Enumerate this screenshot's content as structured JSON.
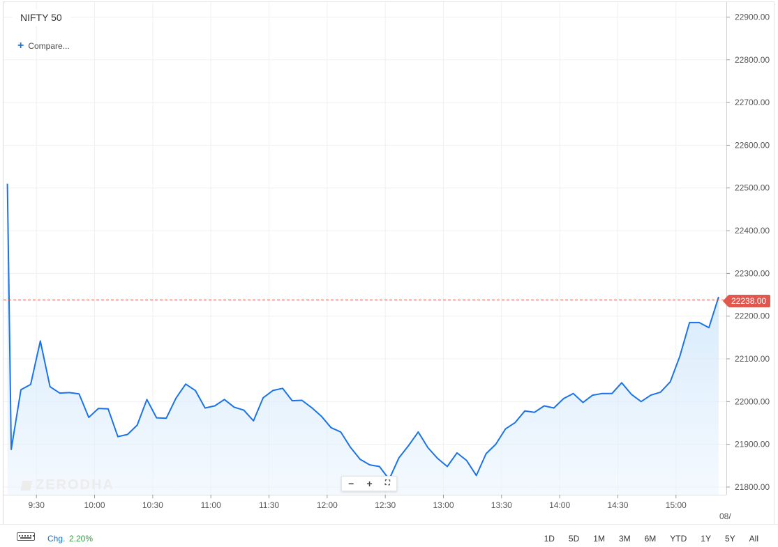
{
  "symbol": "NIFTY 50",
  "compare_label": "Compare...",
  "watermark": "ZERODHA",
  "current_price_label": "22238.00",
  "footer": {
    "change_label": "Chg.",
    "change_value": "2.20%",
    "periods": [
      "1D",
      "5D",
      "1M",
      "3M",
      "6M",
      "YTD",
      "1Y",
      "5Y",
      "All"
    ]
  },
  "colors": {
    "line": "#1a73e8",
    "price_tag": "#e0574e",
    "change_positive": "#2e9e3e"
  },
  "chart_data": {
    "type": "area",
    "y_tick_labels": [
      "22900.00",
      "22800.00",
      "22700.00",
      "22600.00",
      "22500.00",
      "22400.00",
      "22300.00",
      "22200.00",
      "22100.00",
      "22000.00",
      "21900.00",
      "21800.00"
    ],
    "y_ticks": [
      22900,
      22800,
      22700,
      22600,
      22500,
      22400,
      22300,
      22200,
      22100,
      22000,
      21900,
      21800
    ],
    "x_tick_labels": [
      "9:30",
      "10:00",
      "10:30",
      "11:00",
      "11:30",
      "12:00",
      "12:30",
      "13:00",
      "13:30",
      "14:00",
      "14:30",
      "15:00"
    ],
    "x_ticks": [
      570,
      600,
      630,
      660,
      690,
      720,
      750,
      780,
      810,
      840,
      870,
      900
    ],
    "x_edge_label": "08/",
    "ylim": [
      21782,
      22935
    ],
    "xlim": [
      553,
      926
    ],
    "current_price": 22238,
    "x": [
      555,
      557,
      562,
      567,
      572,
      577,
      582,
      587,
      592,
      597,
      602,
      607,
      612,
      617,
      622,
      627,
      632,
      637,
      642,
      647,
      652,
      657,
      662,
      667,
      672,
      677,
      682,
      687,
      692,
      697,
      702,
      707,
      712,
      717,
      722,
      727,
      732,
      737,
      742,
      747,
      752,
      757,
      762,
      767,
      772,
      777,
      782,
      787,
      792,
      797,
      802,
      807,
      812,
      817,
      822,
      827,
      832,
      837,
      842,
      847,
      852,
      857,
      862,
      867,
      872,
      877,
      882,
      887,
      892,
      897,
      902,
      907,
      912,
      917,
      922
    ],
    "values": [
      22510,
      21888,
      22028,
      22040,
      22142,
      22035,
      22020,
      22021,
      22018,
      21963,
      21984,
      21983,
      21918,
      21923,
      21945,
      22005,
      21962,
      21961,
      22008,
      22041,
      22026,
      21985,
      21990,
      22005,
      21987,
      21980,
      21955,
      22009,
      22026,
      22031,
      22002,
      22003,
      21986,
      21966,
      21939,
      21929,
      21893,
      21865,
      21852,
      21848,
      21818,
      21868,
      21897,
      21929,
      21892,
      21867,
      21848,
      21880,
      21862,
      21827,
      21878,
      21900,
      21936,
      21951,
      21978,
      21975,
      21990,
      21985,
      22007,
      22019,
      21998,
      22015,
      22019,
      22019,
      22044,
      22017,
      22000,
      22015,
      22022,
      22046,
      22106,
      22185,
      22185,
      22173,
      22245
    ]
  }
}
